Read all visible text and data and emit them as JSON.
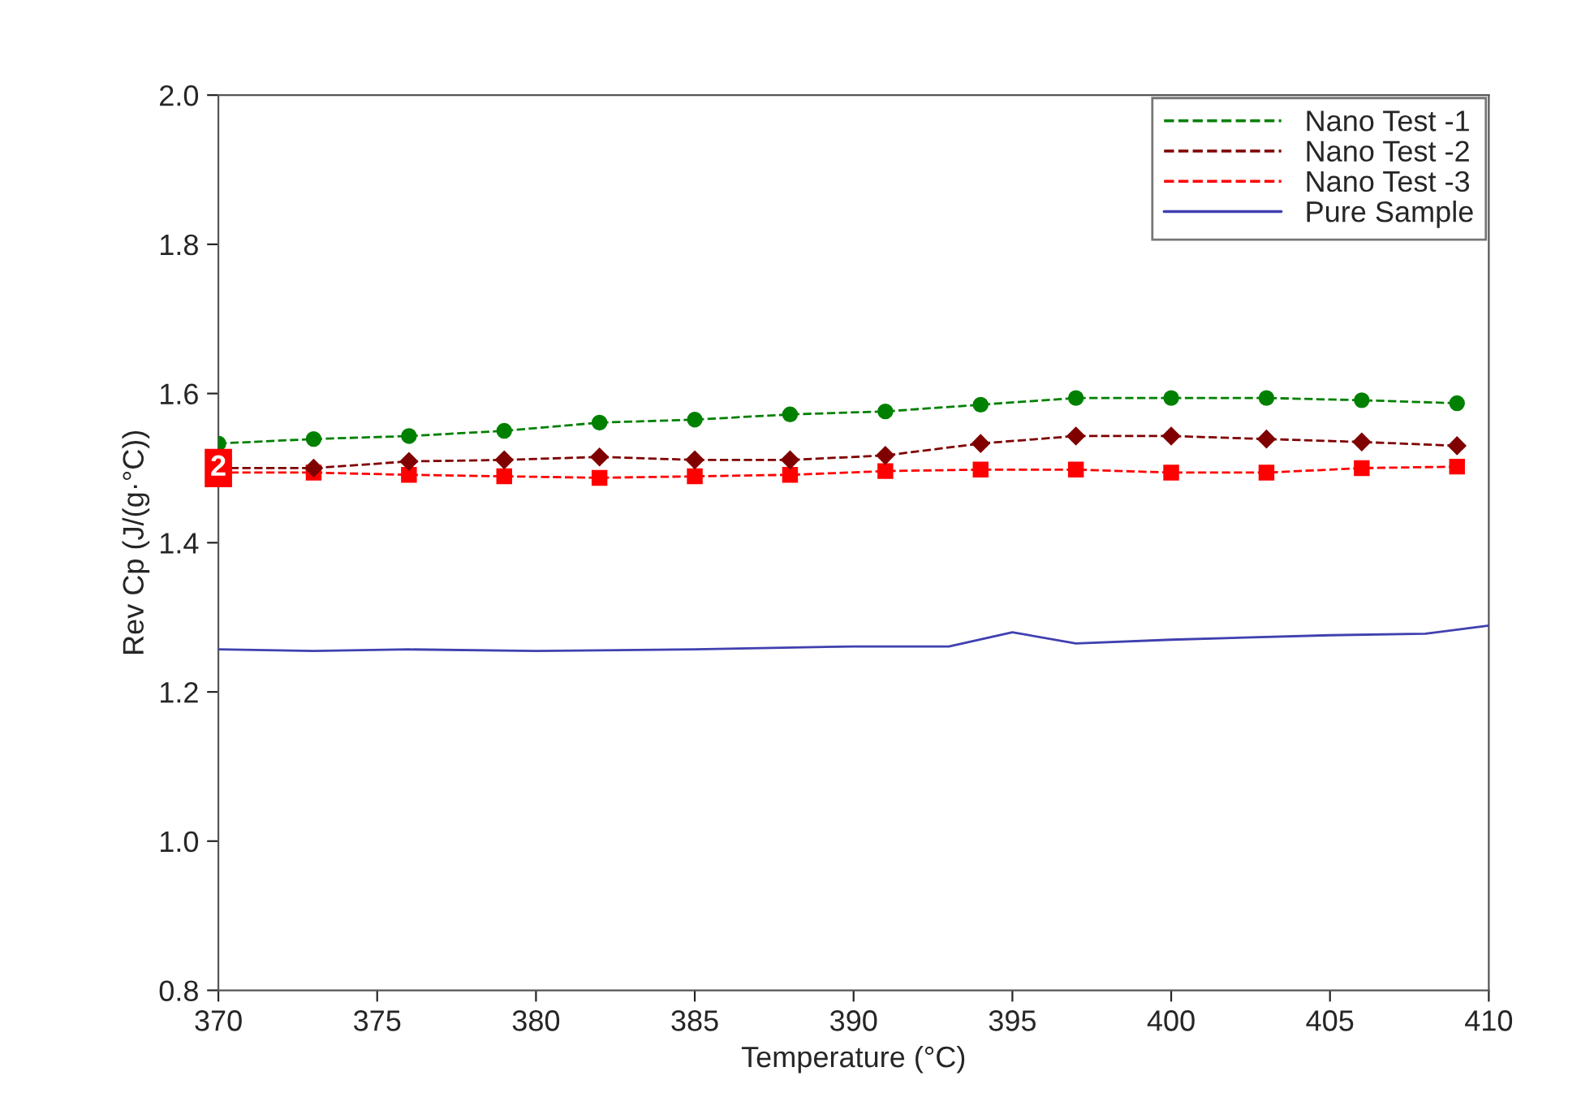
{
  "chart_data": {
    "type": "line",
    "xlabel": "Temperature (°C)",
    "ylabel": "Rev Cp (J/(g·°C))",
    "xlim": [
      370,
      410
    ],
    "xticks": [
      370,
      375,
      380,
      385,
      390,
      395,
      400,
      405,
      410
    ],
    "ylim": [
      0.8,
      2.0
    ],
    "yticks": [
      {
        "value": 0.8,
        "label": "0.8"
      },
      {
        "value": 1.0,
        "label": "1.0"
      },
      {
        "value": 1.2,
        "label": "1.2"
      },
      {
        "value": 1.4,
        "label": "1.4"
      },
      {
        "value": 1.6,
        "label": "1.6"
      },
      {
        "value": 1.8,
        "label": "1.8"
      },
      {
        "value": 2.0,
        "label": "2.0"
      }
    ],
    "grid": false,
    "legend": "top right",
    "annotations": [
      {
        "text": "2",
        "x": 370,
        "y": 1.5
      }
    ],
    "series": [
      {
        "name": "Nano Test -1",
        "color": "#008000",
        "marker": "circle",
        "line_style": "dashed",
        "x": [
          370,
          373,
          376,
          379,
          382,
          385,
          388,
          391,
          394,
          397,
          400,
          403,
          406,
          409
        ],
        "values": [
          1.533,
          1.539,
          1.543,
          1.55,
          1.561,
          1.565,
          1.572,
          1.576,
          1.585,
          1.594,
          1.594,
          1.594,
          1.591,
          1.587
        ]
      },
      {
        "name": "Nano Test -2",
        "color": "#800000",
        "marker": "diamond",
        "line_style": "dashed",
        "x": [
          370,
          373,
          376,
          379,
          382,
          385,
          388,
          391,
          394,
          397,
          400,
          403,
          406,
          409
        ],
        "values": [
          1.5,
          1.5,
          1.509,
          1.511,
          1.515,
          1.511,
          1.511,
          1.517,
          1.533,
          1.543,
          1.543,
          1.539,
          1.535,
          1.53
        ]
      },
      {
        "name": "Nano Test -3",
        "color": "#ff0000",
        "marker": "square",
        "line_style": "dashed",
        "x": [
          370,
          373,
          376,
          379,
          382,
          385,
          388,
          391,
          394,
          397,
          400,
          403,
          406,
          409
        ],
        "values": [
          1.494,
          1.494,
          1.491,
          1.489,
          1.487,
          1.489,
          1.491,
          1.496,
          1.498,
          1.498,
          1.494,
          1.494,
          1.5,
          1.502
        ]
      },
      {
        "name": "Pure Sample",
        "color": "#4040b0",
        "marker": "none",
        "line_style": "solid",
        "x": [
          370,
          373,
          376,
          380,
          385,
          390,
          393,
          395,
          397,
          400,
          405,
          408,
          410
        ],
        "values": [
          1.257,
          1.255,
          1.257,
          1.255,
          1.257,
          1.261,
          1.261,
          1.28,
          1.265,
          1.27,
          1.276,
          1.278,
          1.289
        ]
      }
    ]
  }
}
